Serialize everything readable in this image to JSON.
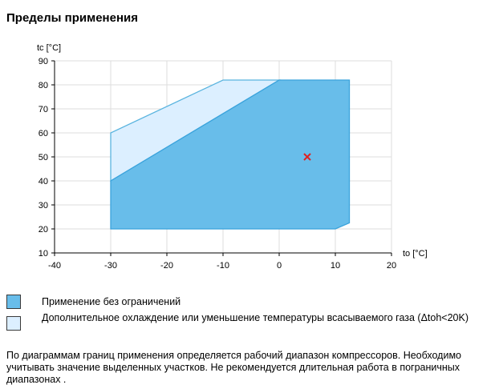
{
  "page": {
    "title": "Пределы применения",
    "footnote": "По диаграммам границ применения определяется рабочий диапазон компрессоров. Необходимо учитывать значение выделенных участков. Не рекомендуется длительная работа в пограничных диапазонах ."
  },
  "legend": [
    {
      "label": "Применение без ограничений",
      "color": "#68bdea"
    },
    {
      "label": "Дополнительное охлаждение или уменьшение температуры всасываемого газа (Δtoh<20K)",
      "color": "#dcefff"
    }
  ],
  "colors": {
    "primary_fill": "#68bdea",
    "primary_stroke": "#3aa3dc",
    "secondary_fill": "#dcefff",
    "secondary_stroke": "#5ab4df",
    "grid": "#dddddd",
    "marker": "#e0201f"
  },
  "chart_data": {
    "type": "area",
    "xlabel": "to [°C]",
    "ylabel": "tc [°C]",
    "xlim": [
      -40,
      20
    ],
    "ylim": [
      10,
      90
    ],
    "xticks": [
      -40,
      -30,
      -20,
      -10,
      0,
      10,
      20
    ],
    "yticks": [
      10,
      20,
      30,
      40,
      50,
      60,
      70,
      80,
      90
    ],
    "grid": true,
    "series": [
      {
        "name": "Дополнительное охлаждение или уменьшение температуры всасываемого газа (Δtoh<20K)",
        "polygon": [
          [
            -30,
            40
          ],
          [
            -30,
            60
          ],
          [
            -10,
            82
          ],
          [
            0,
            82
          ]
        ]
      },
      {
        "name": "Применение без ограничений",
        "polygon": [
          [
            -30,
            20
          ],
          [
            -30,
            40
          ],
          [
            0,
            82
          ],
          [
            12.5,
            82
          ],
          [
            12.5,
            22.5
          ],
          [
            10,
            20
          ]
        ]
      }
    ],
    "point": {
      "x": 5,
      "y": 50,
      "marker": "x"
    }
  }
}
